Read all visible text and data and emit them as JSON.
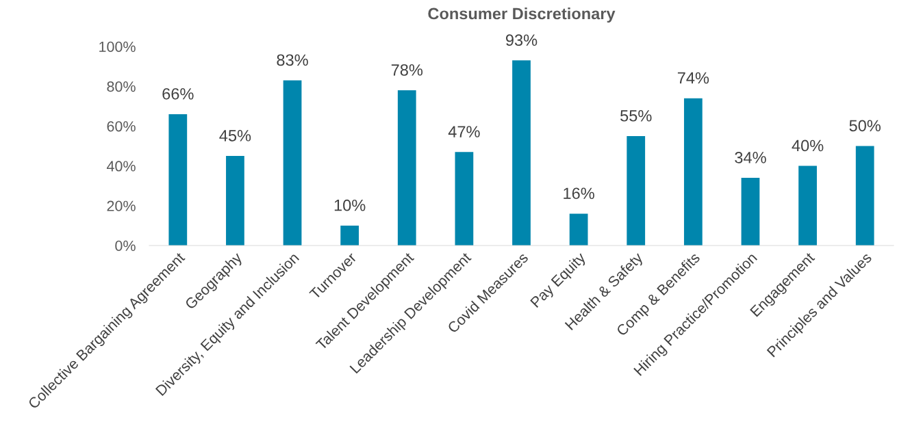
{
  "chart_data": {
    "type": "bar",
    "title": "Consumer Discretionary",
    "categories": [
      "Collective Bargaining Agreement",
      "Geography",
      "Diversity, Equity and Inclusion",
      "Turnover",
      "Talent Development",
      "Leadership Development",
      "Covid Measures",
      "Pay Equity",
      "Health & Safety",
      "Comp & Benefits",
      "Hiring Practice/Promotion",
      "Engagement",
      "Principles and Values"
    ],
    "values": [
      66,
      45,
      83,
      10,
      78,
      47,
      93,
      16,
      55,
      74,
      34,
      40,
      50
    ],
    "value_labels": [
      "66%",
      "45%",
      "83%",
      "10%",
      "78%",
      "47%",
      "93%",
      "16%",
      "55%",
      "74%",
      "34%",
      "40%",
      "50%"
    ],
    "color": "#0086ad",
    "ylim": [
      0,
      100
    ],
    "yticks": [
      {
        "value": 0,
        "label": "0%"
      },
      {
        "value": 20,
        "label": "20%"
      },
      {
        "value": 40,
        "label": "40%"
      },
      {
        "value": 60,
        "label": "60%"
      },
      {
        "value": 80,
        "label": "80%"
      },
      {
        "value": 100,
        "label": "100%"
      }
    ],
    "grid": false,
    "legend": false
  }
}
